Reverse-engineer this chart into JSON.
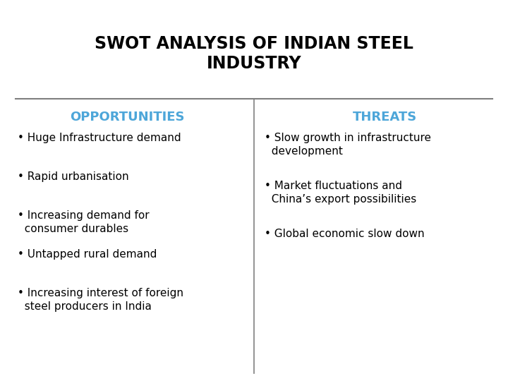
{
  "title": "SWOT ANALYSIS OF INDIAN STEEL\nINDUSTRY",
  "title_fontsize": 17,
  "title_color": "#000000",
  "background_color": "#ffffff",
  "header_line_color": "#7f7f7f",
  "divider_line_color": "#7f7f7f",
  "section_header_color": "#4da6d9",
  "section_header_fontsize": 13,
  "bullet_text_color": "#000000",
  "bullet_text_fontsize": 11,
  "left_header": "OPPORTUNITIES",
  "right_header": "THREATS",
  "left_bullets": [
    "Huge Infrastructure demand",
    "Rapid urbanisation",
    "Increasing demand for\n  consumer durables",
    "Untapped rural demand",
    "Increasing interest of foreign\n  steel producers in India"
  ],
  "right_bullets": [
    "Slow growth in infrastructure\n  development",
    "Market fluctuations and\n  China’s export possibilities",
    "Global economic slow down"
  ]
}
